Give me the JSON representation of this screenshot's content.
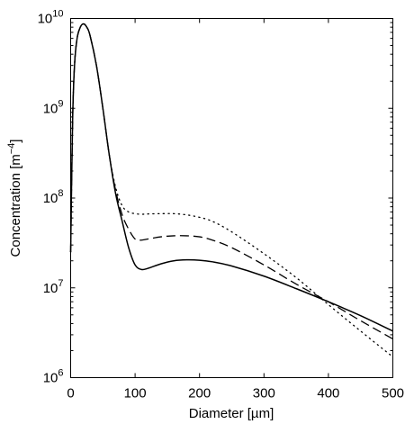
{
  "chart_data": {
    "type": "line",
    "title": "",
    "xlabel": "Diameter [µm]",
    "ylabel": "Concentration [m⁻⁴]",
    "ylabel_base": "Concentration [m",
    "ylabel_sup": "−4",
    "ylabel_close": "]",
    "xlim": [
      0,
      500
    ],
    "ylim": [
      1000000,
      10000000000
    ],
    "y_scale": "log",
    "grid": false,
    "x_ticks": [
      "0",
      "100",
      "200",
      "300",
      "400",
      "500"
    ],
    "y_ticks": [
      {
        "base": "10",
        "exp": "6"
      },
      {
        "base": "10",
        "exp": "7"
      },
      {
        "base": "10",
        "exp": "8"
      },
      {
        "base": "10",
        "exp": "9"
      },
      {
        "base": "10",
        "exp": "10"
      }
    ],
    "series": [
      {
        "style": "solid",
        "x": [
          0,
          3,
          6,
          10,
          15,
          20,
          25,
          30,
          40,
          50,
          60,
          70,
          80,
          90,
          100,
          110,
          120,
          140,
          160,
          180,
          200,
          220,
          250,
          300,
          350,
          400,
          450,
          500
        ],
        "y": [
          25000000,
          700000000,
          3000000000,
          6000000000,
          8000000000,
          8700000000,
          8000000000,
          6500000000,
          3000000000,
          1000000000,
          300000000,
          110000000,
          55000000,
          28000000,
          18000000,
          16000000,
          16500000,
          18500000,
          20000000,
          20500000,
          20300000,
          19500000,
          17500000,
          13500000,
          9800000,
          7000000,
          4900000,
          3300000
        ]
      },
      {
        "style": "dashed",
        "x": [
          0,
          3,
          6,
          10,
          15,
          20,
          25,
          30,
          40,
          50,
          60,
          70,
          80,
          90,
          100,
          110,
          120,
          140,
          160,
          180,
          200,
          220,
          250,
          300,
          350,
          400,
          450,
          500
        ],
        "y": [
          25000000,
          700000000,
          3000000000,
          6000000000,
          8000000000,
          8700000000,
          8000000000,
          6500000000,
          3000000000,
          1000000000,
          300000000,
          120000000,
          65000000,
          45000000,
          35000000,
          34000000,
          35000000,
          37000000,
          38000000,
          38000000,
          37000000,
          34000000,
          28000000,
          18000000,
          11000000,
          7000000,
          4300000,
          2700000
        ]
      },
      {
        "style": "dotted",
        "x": [
          0,
          3,
          6,
          10,
          15,
          20,
          25,
          30,
          40,
          50,
          60,
          70,
          80,
          90,
          100,
          110,
          120,
          140,
          160,
          180,
          200,
          220,
          250,
          300,
          350,
          400,
          450,
          500
        ],
        "y": [
          25000000,
          700000000,
          3000000000,
          6000000000,
          8000000000,
          8700000000,
          8000000000,
          6500000000,
          3000000000,
          1000000000,
          300000000,
          130000000,
          82000000,
          70000000,
          67000000,
          66000000,
          66500000,
          67000000,
          67000000,
          65000000,
          61000000,
          55000000,
          42000000,
          24000000,
          13000000,
          6500000,
          3300000,
          1700000
        ]
      }
    ]
  }
}
